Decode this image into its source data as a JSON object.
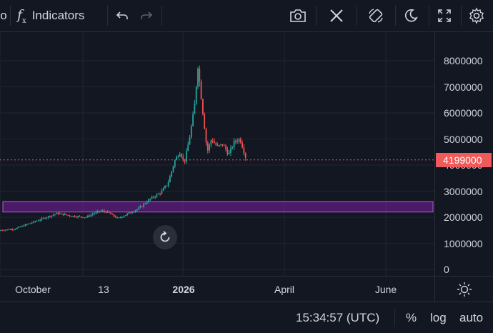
{
  "toolbar": {
    "partial_left_label": "o",
    "fx_symbol": "f",
    "indicators_label": "Indicators",
    "icons": [
      "undo-icon",
      "redo-icon",
      "camera-icon",
      "close-icon",
      "rotate-icon",
      "moon-icon",
      "fullscreen-icon",
      "gear-icon"
    ]
  },
  "chart_data": {
    "type": "candlestick",
    "title": "",
    "xlabel": "",
    "ylabel": "",
    "ylim": [
      0,
      8500000
    ],
    "x_tick_labels": [
      "October",
      "13",
      "2026",
      "April",
      "June"
    ],
    "y_ticks": [
      0,
      1000000,
      2000000,
      3000000,
      4000000,
      5000000,
      6000000,
      7000000,
      8000000
    ],
    "y_tick_labels": [
      "0",
      "1000000",
      "2000000",
      "3000000",
      "4000000",
      "5000000",
      "6000000",
      "7000000",
      "8000000"
    ],
    "current_price": 4199000,
    "current_price_label": "4199000",
    "highlight_zone": {
      "low": 2200000,
      "high": 2600000,
      "color": "#7b1fa2"
    },
    "series_shape": [
      {
        "phase": "October",
        "approx_close_range": [
          1500000,
          2200000
        ]
      },
      {
        "phase": "13",
        "approx_close_range": [
          1900000,
          2300000
        ]
      },
      {
        "phase": "2026",
        "approx_close_range": [
          4000000,
          7800000
        ]
      },
      {
        "phase": "after 2026",
        "approx_close_range": [
          4100000,
          5000000
        ]
      }
    ],
    "up_color": "#26a69a",
    "down_color": "#ef5350",
    "grid": true
  },
  "bottom": {
    "time": "15:34:57 (UTC)",
    "percent": "%",
    "log": "log",
    "auto": "auto"
  },
  "colors": {
    "background": "#131722",
    "accent_red": "#f05a5a",
    "zone": "#7b1fa2"
  }
}
